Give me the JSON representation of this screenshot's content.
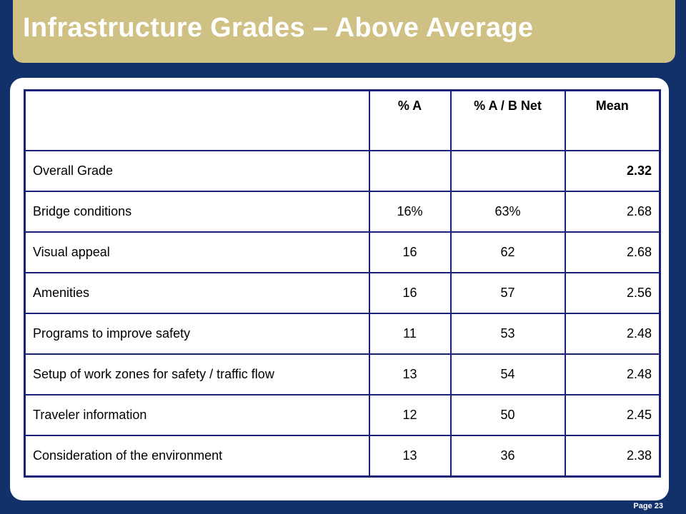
{
  "header": {
    "title": "Infrastructure Grades – Above Average"
  },
  "table": {
    "columns": [
      "",
      "% A",
      "% A / B Net",
      "Mean"
    ],
    "rows": [
      {
        "label": "Overall Grade",
        "pct_a": "",
        "pct_ab": "",
        "mean": "2.32"
      },
      {
        "label": "Bridge conditions",
        "pct_a": "16%",
        "pct_ab": "63%",
        "mean": "2.68"
      },
      {
        "label": "Visual appeal",
        "pct_a": "16",
        "pct_ab": "62",
        "mean": "2.68"
      },
      {
        "label": "Amenities",
        "pct_a": "16",
        "pct_ab": "57",
        "mean": "2.56"
      },
      {
        "label": "Programs to improve safety",
        "pct_a": "11",
        "pct_ab": "53",
        "mean": "2.48"
      },
      {
        "label": "Setup of work zones for safety / traffic flow",
        "pct_a": "13",
        "pct_ab": "54",
        "mean": "2.48"
      },
      {
        "label": "Traveler information",
        "pct_a": "12",
        "pct_ab": "50",
        "mean": "2.45"
      },
      {
        "label": "Consideration of the environment",
        "pct_a": "13",
        "pct_ab": "36",
        "mean": "2.38"
      }
    ]
  },
  "footer": {
    "page": "Page 23"
  },
  "colors": {
    "background": "#12306a",
    "title_bar": "#cfc083",
    "table_border": "#1a1f7a"
  }
}
